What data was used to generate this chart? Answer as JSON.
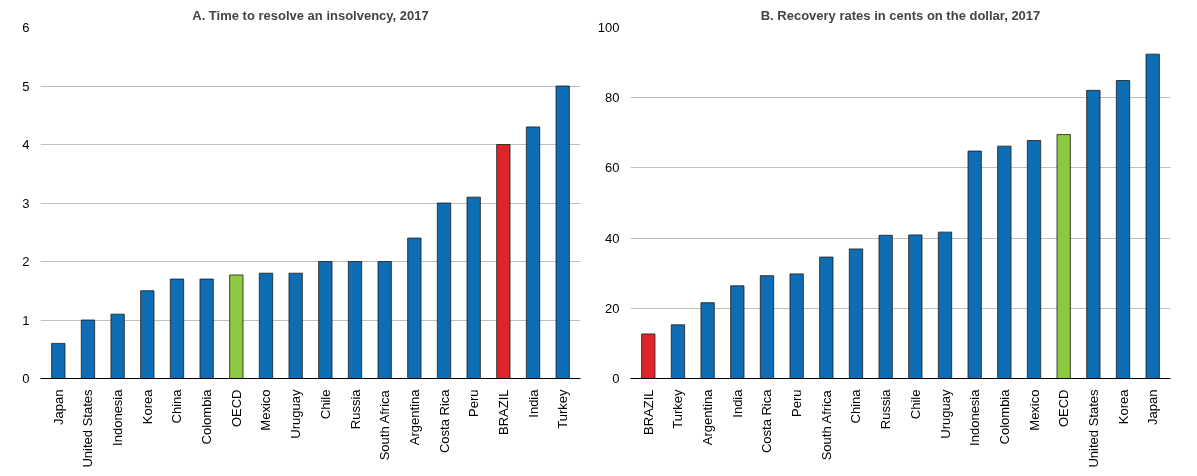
{
  "chart_data": [
    {
      "type": "bar",
      "title": "A. Time to resolve an insolvency, 2017",
      "categories": [
        "Japan",
        "United States",
        "Indonesia",
        "Korea",
        "China",
        "Colombia",
        "OECD",
        "Mexico",
        "Uruguay",
        "Chile",
        "Russia",
        "South Africa",
        "Argentina",
        "Costa Rica",
        "Peru",
        "BRAZIL",
        "India",
        "Turkey"
      ],
      "values": [
        0.6,
        1.0,
        1.1,
        1.5,
        1.7,
        1.7,
        1.77,
        1.8,
        1.8,
        2.0,
        2.0,
        2.0,
        2.4,
        3.0,
        3.1,
        4.0,
        4.3,
        5.0
      ],
      "colors": [
        "#0f6db3",
        "#0f6db3",
        "#0f6db3",
        "#0f6db3",
        "#0f6db3",
        "#0f6db3",
        "#8cc841",
        "#0f6db3",
        "#0f6db3",
        "#0f6db3",
        "#0f6db3",
        "#0f6db3",
        "#0f6db3",
        "#0f6db3",
        "#0f6db3",
        "#e0242c",
        "#0f6db3",
        "#0f6db3"
      ],
      "ylim": [
        0,
        6
      ],
      "yticks": [
        0,
        1,
        2,
        3,
        4,
        5,
        6
      ],
      "grid": "y"
    },
    {
      "type": "bar",
      "title": "B. Recovery rates in cents on the dollar, 2017",
      "categories": [
        "BRAZIL",
        "Turkey",
        "Argentina",
        "India",
        "Costa Rica",
        "Peru",
        "South Africa",
        "China",
        "Russia",
        "Chile",
        "Uruguay",
        "Indonesia",
        "Colombia",
        "Mexico",
        "OECD",
        "United States",
        "Korea",
        "Japan"
      ],
      "values": [
        12.7,
        15.3,
        21.6,
        26.4,
        29.3,
        29.8,
        34.6,
        36.9,
        40.8,
        40.9,
        41.7,
        64.8,
        66.2,
        67.8,
        69.5,
        82.1,
        84.9,
        92.4
      ],
      "colors": [
        "#e0242c",
        "#0f6db3",
        "#0f6db3",
        "#0f6db3",
        "#0f6db3",
        "#0f6db3",
        "#0f6db3",
        "#0f6db3",
        "#0f6db3",
        "#0f6db3",
        "#0f6db3",
        "#0f6db3",
        "#0f6db3",
        "#0f6db3",
        "#8cc841",
        "#0f6db3",
        "#0f6db3",
        "#0f6db3"
      ],
      "ylim": [
        0,
        100
      ],
      "yticks": [
        0,
        20,
        40,
        60,
        80,
        100
      ],
      "grid": "y"
    }
  ]
}
